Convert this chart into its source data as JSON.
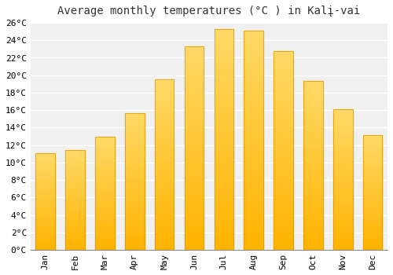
{
  "title": "Average monthly temperatures (°C ) in Kalį-vai",
  "months": [
    "Jan",
    "Feb",
    "Mar",
    "Apr",
    "May",
    "Jun",
    "Jul",
    "Aug",
    "Sep",
    "Oct",
    "Nov",
    "Dec"
  ],
  "values": [
    11.1,
    11.4,
    13.0,
    15.7,
    19.5,
    23.3,
    25.3,
    25.1,
    22.8,
    19.3,
    16.1,
    13.1
  ],
  "bar_color_bottom": "#FFB300",
  "bar_color_top": "#FFD966",
  "bar_edge_color": "#E09000",
  "background_color": "#FFFFFF",
  "plot_bg_color": "#F0F0F0",
  "grid_color": "#FFFFFF",
  "ylim": [
    0,
    26
  ],
  "yticks": [
    0,
    2,
    4,
    6,
    8,
    10,
    12,
    14,
    16,
    18,
    20,
    22,
    24,
    26
  ],
  "title_fontsize": 10,
  "tick_fontsize": 8,
  "font_family": "monospace"
}
